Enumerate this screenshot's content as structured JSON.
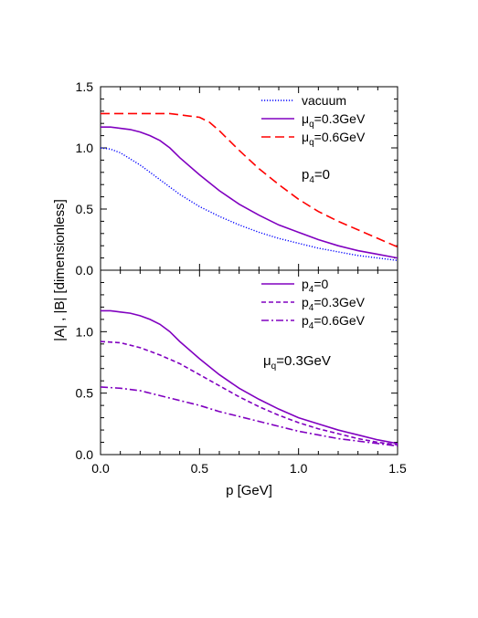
{
  "chart_data": [
    {
      "type": "line",
      "panel": "top",
      "xlim": [
        0.0,
        1.5
      ],
      "ylim": [
        0.0,
        1.5
      ],
      "yticks": [
        "0.0",
        "0.5",
        "1.0",
        "1.5"
      ],
      "xtick_labels_shown": false,
      "annotation": {
        "main": "p",
        "sub": "4",
        "tail": "=0"
      },
      "legend_position": "top-right",
      "series": [
        {
          "name": {
            "main": "vacuum",
            "sub": "",
            "tail": ""
          },
          "color": "#0000ff",
          "dash": "dotted",
          "x": [
            0.0,
            0.05,
            0.1,
            0.15,
            0.2,
            0.25,
            0.3,
            0.35,
            0.4,
            0.5,
            0.6,
            0.7,
            0.8,
            0.9,
            1.0,
            1.1,
            1.2,
            1.3,
            1.4,
            1.5
          ],
          "y": [
            1.0,
            0.99,
            0.96,
            0.91,
            0.86,
            0.8,
            0.74,
            0.68,
            0.62,
            0.52,
            0.44,
            0.37,
            0.31,
            0.26,
            0.22,
            0.18,
            0.15,
            0.12,
            0.1,
            0.08
          ]
        },
        {
          "name": {
            "main": "μ",
            "sub": "q",
            "tail": "=0.3GeV"
          },
          "color": "#8000c0",
          "dash": "solid",
          "x": [
            0.0,
            0.05,
            0.1,
            0.15,
            0.2,
            0.25,
            0.3,
            0.35,
            0.4,
            0.5,
            0.6,
            0.7,
            0.8,
            0.9,
            1.0,
            1.1,
            1.2,
            1.3,
            1.4,
            1.5
          ],
          "y": [
            1.17,
            1.17,
            1.16,
            1.15,
            1.13,
            1.1,
            1.06,
            1.0,
            0.92,
            0.78,
            0.65,
            0.54,
            0.45,
            0.37,
            0.31,
            0.25,
            0.2,
            0.16,
            0.13,
            0.1
          ]
        },
        {
          "name": {
            "main": "μ",
            "sub": "q",
            "tail": "=0.6GeV"
          },
          "color": "#ff0000",
          "dash": "long-dash",
          "x": [
            0.0,
            0.1,
            0.2,
            0.3,
            0.35,
            0.4,
            0.45,
            0.5,
            0.55,
            0.6,
            0.65,
            0.7,
            0.8,
            0.9,
            1.0,
            1.1,
            1.2,
            1.3,
            1.4,
            1.5
          ],
          "y": [
            1.28,
            1.28,
            1.28,
            1.28,
            1.28,
            1.27,
            1.26,
            1.25,
            1.21,
            1.14,
            1.06,
            0.98,
            0.83,
            0.7,
            0.58,
            0.48,
            0.4,
            0.33,
            0.26,
            0.19
          ]
        }
      ]
    },
    {
      "type": "line",
      "panel": "bottom",
      "xlim": [
        0.0,
        1.5
      ],
      "ylim": [
        0.0,
        1.5
      ],
      "xticks": [
        "0.0",
        "0.5",
        "1.0",
        "1.5"
      ],
      "yticks": [
        "0.0",
        "0.5",
        "1.0"
      ],
      "xlabel": "p [GeV]",
      "ylabel": "|A| , |B|  [dimensionless]",
      "annotation": {
        "main": "μ",
        "sub": "q",
        "tail": "=0.3GeV"
      },
      "legend_position": "top-right",
      "series": [
        {
          "name": {
            "main": "p",
            "sub": "4",
            "tail": "=0"
          },
          "color": "#8000c0",
          "dash": "solid",
          "x": [
            0.0,
            0.05,
            0.1,
            0.15,
            0.2,
            0.25,
            0.3,
            0.35,
            0.4,
            0.5,
            0.6,
            0.7,
            0.8,
            0.9,
            1.0,
            1.1,
            1.2,
            1.3,
            1.4,
            1.5
          ],
          "y": [
            1.17,
            1.17,
            1.16,
            1.15,
            1.13,
            1.1,
            1.06,
            1.0,
            0.92,
            0.78,
            0.65,
            0.54,
            0.45,
            0.37,
            0.3,
            0.25,
            0.2,
            0.16,
            0.12,
            0.09
          ]
        },
        {
          "name": {
            "main": "p",
            "sub": "4",
            "tail": "=0.3GeV"
          },
          "color": "#8000c0",
          "dash": "dashed",
          "x": [
            0.0,
            0.1,
            0.2,
            0.3,
            0.4,
            0.5,
            0.6,
            0.7,
            0.8,
            0.9,
            1.0,
            1.1,
            1.2,
            1.3,
            1.4,
            1.5
          ],
          "y": [
            0.92,
            0.91,
            0.87,
            0.81,
            0.74,
            0.65,
            0.56,
            0.47,
            0.39,
            0.32,
            0.26,
            0.21,
            0.17,
            0.13,
            0.1,
            0.08
          ]
        },
        {
          "name": {
            "main": "p",
            "sub": "4",
            "tail": "=0.6GeV"
          },
          "color": "#8000c0",
          "dash": "dash-dot",
          "x": [
            0.0,
            0.1,
            0.2,
            0.3,
            0.4,
            0.5,
            0.6,
            0.7,
            0.8,
            0.9,
            1.0,
            1.1,
            1.2,
            1.3,
            1.4,
            1.5
          ],
          "y": [
            0.55,
            0.54,
            0.52,
            0.48,
            0.44,
            0.4,
            0.35,
            0.31,
            0.27,
            0.23,
            0.19,
            0.16,
            0.13,
            0.11,
            0.09,
            0.07
          ]
        }
      ]
    }
  ]
}
